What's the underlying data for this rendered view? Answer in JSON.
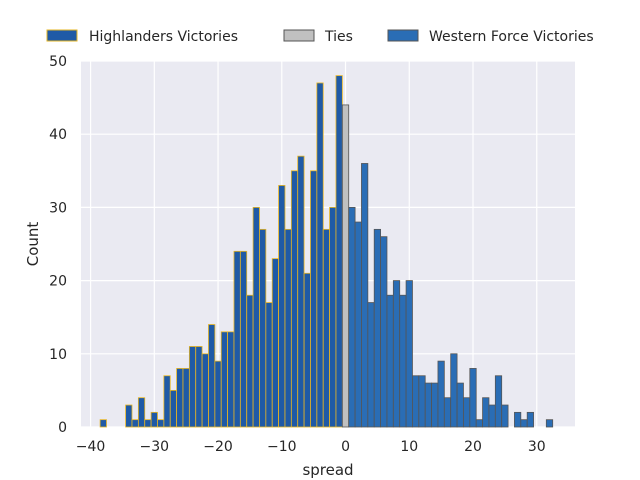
{
  "chart_data": {
    "type": "bar",
    "subtype": "histogram",
    "xlabel": "spread",
    "ylabel": "Count",
    "xlim": [
      -41.5,
      36
    ],
    "ylim": [
      0,
      50
    ],
    "xticks": [
      -40,
      -30,
      -20,
      -10,
      0,
      10,
      20,
      30
    ],
    "yticks": [
      0,
      10,
      20,
      30,
      40,
      50
    ],
    "grid": true,
    "legend_position": "top",
    "background": "#eaeaf2",
    "series": [
      {
        "name": "Highlanders Victories",
        "color": "#1f5aa6",
        "edge_color": "#e6b422",
        "bin_centers": [
          -38,
          -34,
          -33,
          -32,
          -31,
          -30,
          -29,
          -28,
          -27,
          -26,
          -25,
          -24,
          -23,
          -22,
          -21,
          -20,
          -19,
          -18,
          -17,
          -16,
          -15,
          -14,
          -13,
          -12,
          -11,
          -10,
          -9,
          -8,
          -7,
          -6,
          -5,
          -4,
          -3,
          -2,
          -1
        ],
        "values": [
          1,
          3,
          1,
          4,
          1,
          2,
          1,
          7,
          5,
          8,
          8,
          11,
          11,
          10,
          14,
          9,
          13,
          13,
          24,
          24,
          18,
          30,
          27,
          17,
          23,
          33,
          27,
          35,
          37,
          21,
          35,
          47,
          27,
          30,
          48
        ]
      },
      {
        "name": "Ties",
        "color": "#c0c0c0",
        "edge_color": "#555555",
        "bin_centers": [
          0
        ],
        "values": [
          44
        ]
      },
      {
        "name": "Western Force Victories",
        "color": "#2a6db5",
        "edge_color": "#555555",
        "bin_centers": [
          1,
          2,
          3,
          4,
          5,
          6,
          7,
          8,
          9,
          10,
          11,
          12,
          13,
          14,
          15,
          16,
          17,
          18,
          19,
          20,
          21,
          22,
          23,
          24,
          25,
          27,
          28,
          29,
          32
        ],
        "values": [
          30,
          28,
          36,
          17,
          27,
          26,
          18,
          20,
          18,
          20,
          7,
          7,
          6,
          6,
          9,
          4,
          10,
          6,
          4,
          8,
          1,
          4,
          3,
          7,
          3,
          2,
          1,
          2,
          1
        ]
      }
    ]
  }
}
